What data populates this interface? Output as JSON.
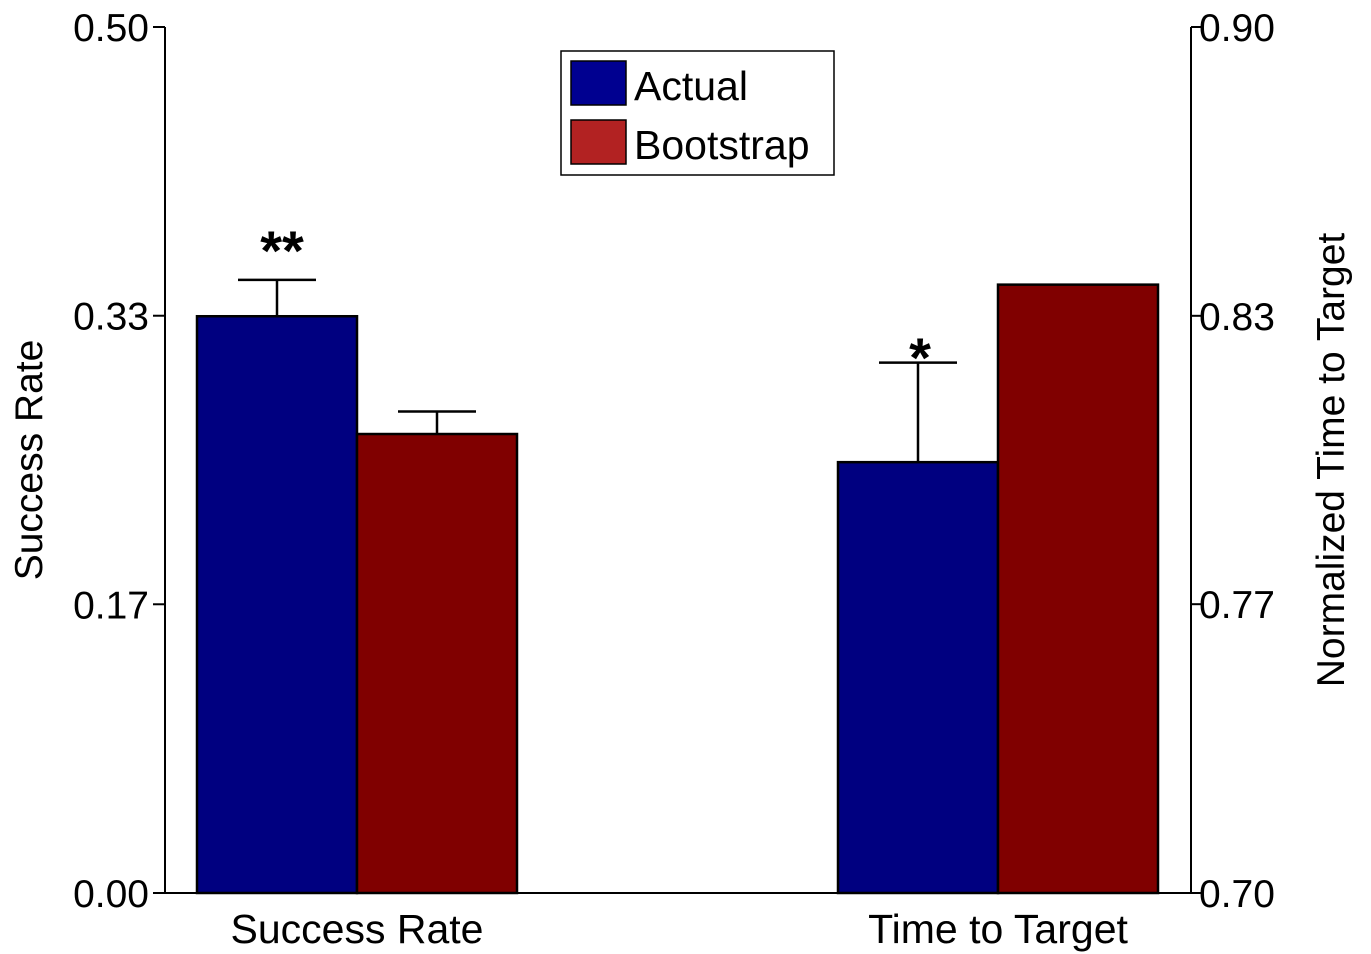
{
  "chart_data": {
    "type": "bar",
    "categories": [
      "Success Rate",
      "Time to Target"
    ],
    "series": [
      {
        "name": "Actual",
        "color": "#000080",
        "values": [
          0.333,
          0.7995
        ],
        "errors": [
          0.021,
          0.023
        ]
      },
      {
        "name": "Bootstrap",
        "color": "#800000",
        "values": [
          0.265,
          0.8405
        ],
        "errors": [
          0.013,
          0.0
        ]
      }
    ],
    "left_axis": {
      "label": "Success Rate",
      "ylim": [
        0.0,
        0.5
      ],
      "ticks": [
        "0.00",
        "0.17",
        "0.33",
        "0.50"
      ],
      "tick_values": [
        0.0,
        0.1667,
        0.3333,
        0.5
      ]
    },
    "right_axis": {
      "label": "Normalized Time to Target",
      "ylim": [
        0.7,
        0.9
      ],
      "ticks": [
        "0.70",
        "0.77",
        "0.83",
        "0.90"
      ],
      "tick_values": [
        0.7,
        0.7667,
        0.8333,
        0.9
      ]
    },
    "annotations": [
      "**",
      "*"
    ],
    "legend": {
      "position": "top-center",
      "entries": [
        "Actual",
        "Bootstrap"
      ],
      "swatch_colors": [
        "#000090",
        "#B22222"
      ]
    },
    "grid": false
  }
}
